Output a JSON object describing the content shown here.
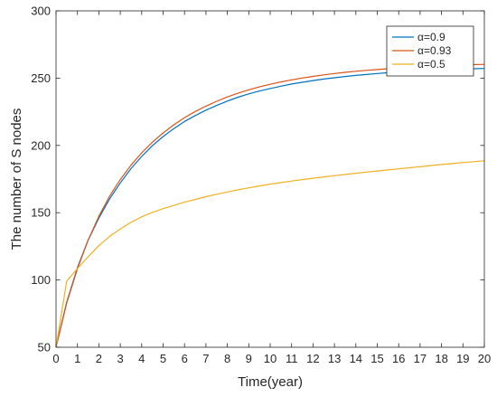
{
  "chart_data": {
    "type": "line",
    "title": "",
    "xlabel": "Time(year)",
    "ylabel": "The number of S nodes",
    "xlim": [
      0,
      20
    ],
    "ylim": [
      50,
      300
    ],
    "xticks": [
      0,
      1,
      2,
      3,
      4,
      5,
      6,
      7,
      8,
      9,
      10,
      11,
      12,
      13,
      14,
      15,
      16,
      17,
      18,
      19,
      20
    ],
    "yticks": [
      50,
      100,
      150,
      200,
      250,
      300
    ],
    "grid": false,
    "legend_position": "top-right",
    "x": [
      0,
      0.5,
      1,
      1.5,
      2,
      2.5,
      3,
      3.5,
      4,
      4.5,
      5,
      5.5,
      6,
      6.5,
      7,
      7.5,
      8,
      8.5,
      9,
      9.5,
      10,
      10.5,
      11,
      11.5,
      12,
      12.5,
      13,
      13.5,
      14,
      14.5,
      15,
      15.5,
      16,
      16.5,
      17,
      17.5,
      18,
      18.5,
      19,
      19.5,
      20
    ],
    "series": [
      {
        "name": "α=0.9",
        "color": "#0072BD",
        "values": [
          50,
          83.5,
          109.2,
          129.6,
          146.0,
          160.3,
          172.1,
          182.7,
          191.8,
          199.8,
          206.6,
          212.5,
          217.8,
          222.2,
          226.2,
          229.7,
          232.9,
          235.8,
          238.3,
          240.4,
          242.3,
          244.0,
          245.6,
          246.9,
          248.2,
          249.3,
          250.3,
          251.2,
          252.0,
          252.7,
          253.4,
          254.0,
          254.6,
          255.0,
          255.4,
          255.8,
          256.1,
          256.4,
          256.7,
          257.0,
          257.2
        ]
      },
      {
        "name": "α=0.93",
        "color": "#D95319",
        "values": [
          50,
          82.8,
          108.3,
          129.5,
          147.3,
          162.3,
          174.6,
          185.3,
          194.5,
          202.4,
          209.3,
          215.3,
          220.6,
          225.2,
          229.2,
          232.8,
          236.0,
          238.8,
          241.3,
          243.5,
          245.4,
          247.2,
          248.7,
          250.1,
          251.3,
          252.4,
          253.4,
          254.3,
          255.1,
          255.8,
          256.4,
          257.0,
          257.5,
          258.0,
          258.4,
          258.8,
          259.1,
          259.4,
          259.7,
          260.0,
          260.2
        ]
      },
      {
        "name": "α=0.5",
        "color": "#EDB120",
        "values": [
          50,
          99.1,
          108.5,
          117.3,
          125.5,
          132.4,
          137.9,
          142.8,
          146.9,
          150.3,
          153.0,
          155.4,
          157.8,
          159.9,
          161.9,
          163.7,
          165.4,
          167.0,
          168.5,
          169.9,
          171.2,
          172.4,
          173.5,
          174.6,
          175.6,
          176.6,
          177.5,
          178.4,
          179.3,
          180.2,
          181.0,
          181.8,
          182.6,
          183.4,
          184.2,
          185.0,
          185.8,
          186.5,
          187.2,
          187.9,
          188.6
        ]
      }
    ]
  }
}
